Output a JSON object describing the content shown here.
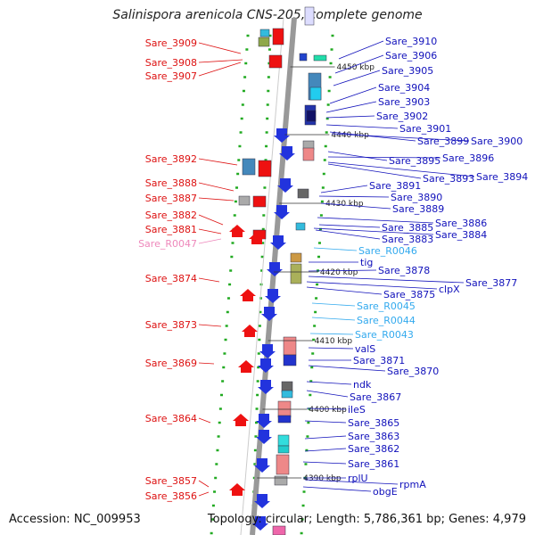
{
  "title": "Salinispora arenicola CNS-205, complete genome",
  "accession": "Accession: NC_009953",
  "topology": "Topology: circular; Length: 5,786,361 bp; Genes: 4,979",
  "colors": {
    "left_label": "#dd1111",
    "right_label": "#1111bb",
    "rna_label": "#33aaee",
    "pseudo_label": "#ee88bb",
    "tick": "#22aa22",
    "axis": "#999999"
  },
  "kbp_markers": [
    "4450 kbp",
    "4440 kbp",
    "4430 kbp",
    "4420 kbp",
    "4410 kbp",
    "4400 kbp",
    "4390 kbp"
  ],
  "left_labels": [
    "Sare_3909",
    "Sare_3908",
    "Sare_3907",
    "Sare_3892",
    "Sare_3888",
    "Sare_3887",
    "Sare_3882",
    "Sare_3881",
    "Sare_R0047",
    "Sare_3874",
    "Sare_3873",
    "Sare_3869",
    "Sare_3864",
    "Sare_3857",
    "Sare_3856"
  ],
  "right_labels": [
    "Sare_3910",
    "Sare_3906",
    "Sare_3905",
    "Sare_3904",
    "Sare_3903",
    "Sare_3902",
    "Sare_3901",
    "Sare_3899",
    "Sare_3900",
    "Sare_3896",
    "Sare_3895",
    "Sare_3893",
    "Sare_3894",
    "Sare_3891",
    "Sare_3890",
    "Sare_3889",
    "Sare_3886",
    "Sare_3885",
    "Sare_3884",
    "Sare_3883",
    "Sare_R0046",
    "tig",
    "Sare_3878",
    "Sare_3877",
    "clpX",
    "Sare_3875",
    "Sare_R0045",
    "Sare_R0044",
    "Sare_R0043",
    "valS",
    "Sare_3871",
    "Sare_3870",
    "ndk",
    "Sare_3867",
    "ileS",
    "Sare_3865",
    "Sare_3863",
    "Sare_3862",
    "Sare_3861",
    "rplU",
    "rpmA",
    "obgE"
  ]
}
